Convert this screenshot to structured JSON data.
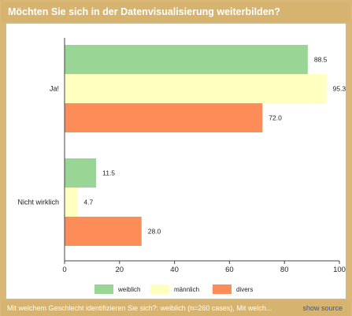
{
  "title": "Möchten Sie sich in der Datenvisualisierung weiterbilden?",
  "footer": {
    "caption": "Mit welchem Geschlecht identifizieren Sie sich?: weiblich (n=260 cases), Mit welch...",
    "source_link": "show source"
  },
  "chart_data": {
    "type": "bar",
    "orientation": "horizontal",
    "categories": [
      "Ja!",
      "Nicht wirklich"
    ],
    "series": [
      {
        "name": "weiblich",
        "color": "#99d594",
        "values": [
          88.5,
          11.5
        ]
      },
      {
        "name": "männlich",
        "color": "#ffffbf",
        "values": [
          95.3,
          4.7
        ]
      },
      {
        "name": "divers",
        "color": "#fc8d59",
        "values": [
          72.0,
          28.0
        ]
      }
    ],
    "value_labels": [
      [
        "88.5",
        "11.5"
      ],
      [
        "95.3",
        "4.7"
      ],
      [
        "72.0",
        "28.0"
      ]
    ],
    "xlim": [
      0,
      100
    ],
    "xticks": [
      "0",
      "20",
      "40",
      "60",
      "80",
      "100"
    ],
    "grid": false,
    "legend_position": "bottom"
  }
}
